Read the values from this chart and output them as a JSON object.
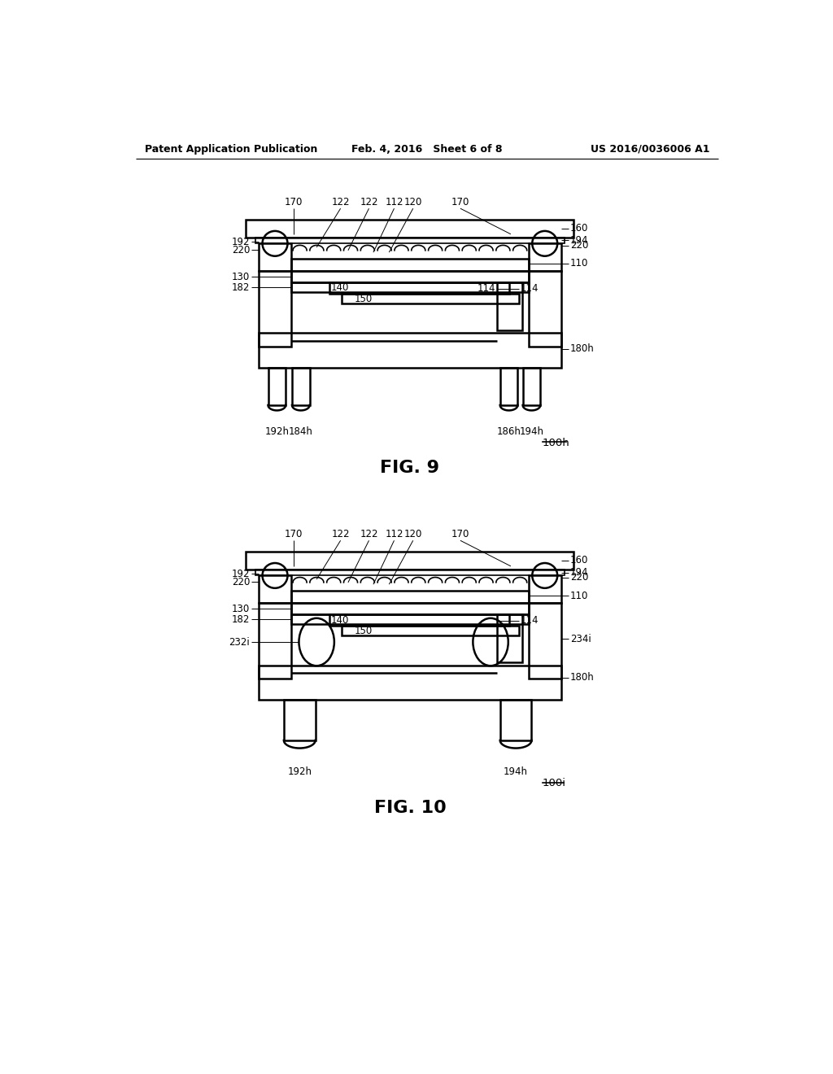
{
  "header_left": "Patent Application Publication",
  "header_mid": "Feb. 4, 2016   Sheet 6 of 8",
  "header_right": "US 2016/0036006 A1",
  "fig9_label": "FIG. 9",
  "fig10_label": "FIG. 10",
  "fig9_ref": "100h",
  "fig10_ref": "100i",
  "bg_color": "#ffffff",
  "line_color": "#000000"
}
